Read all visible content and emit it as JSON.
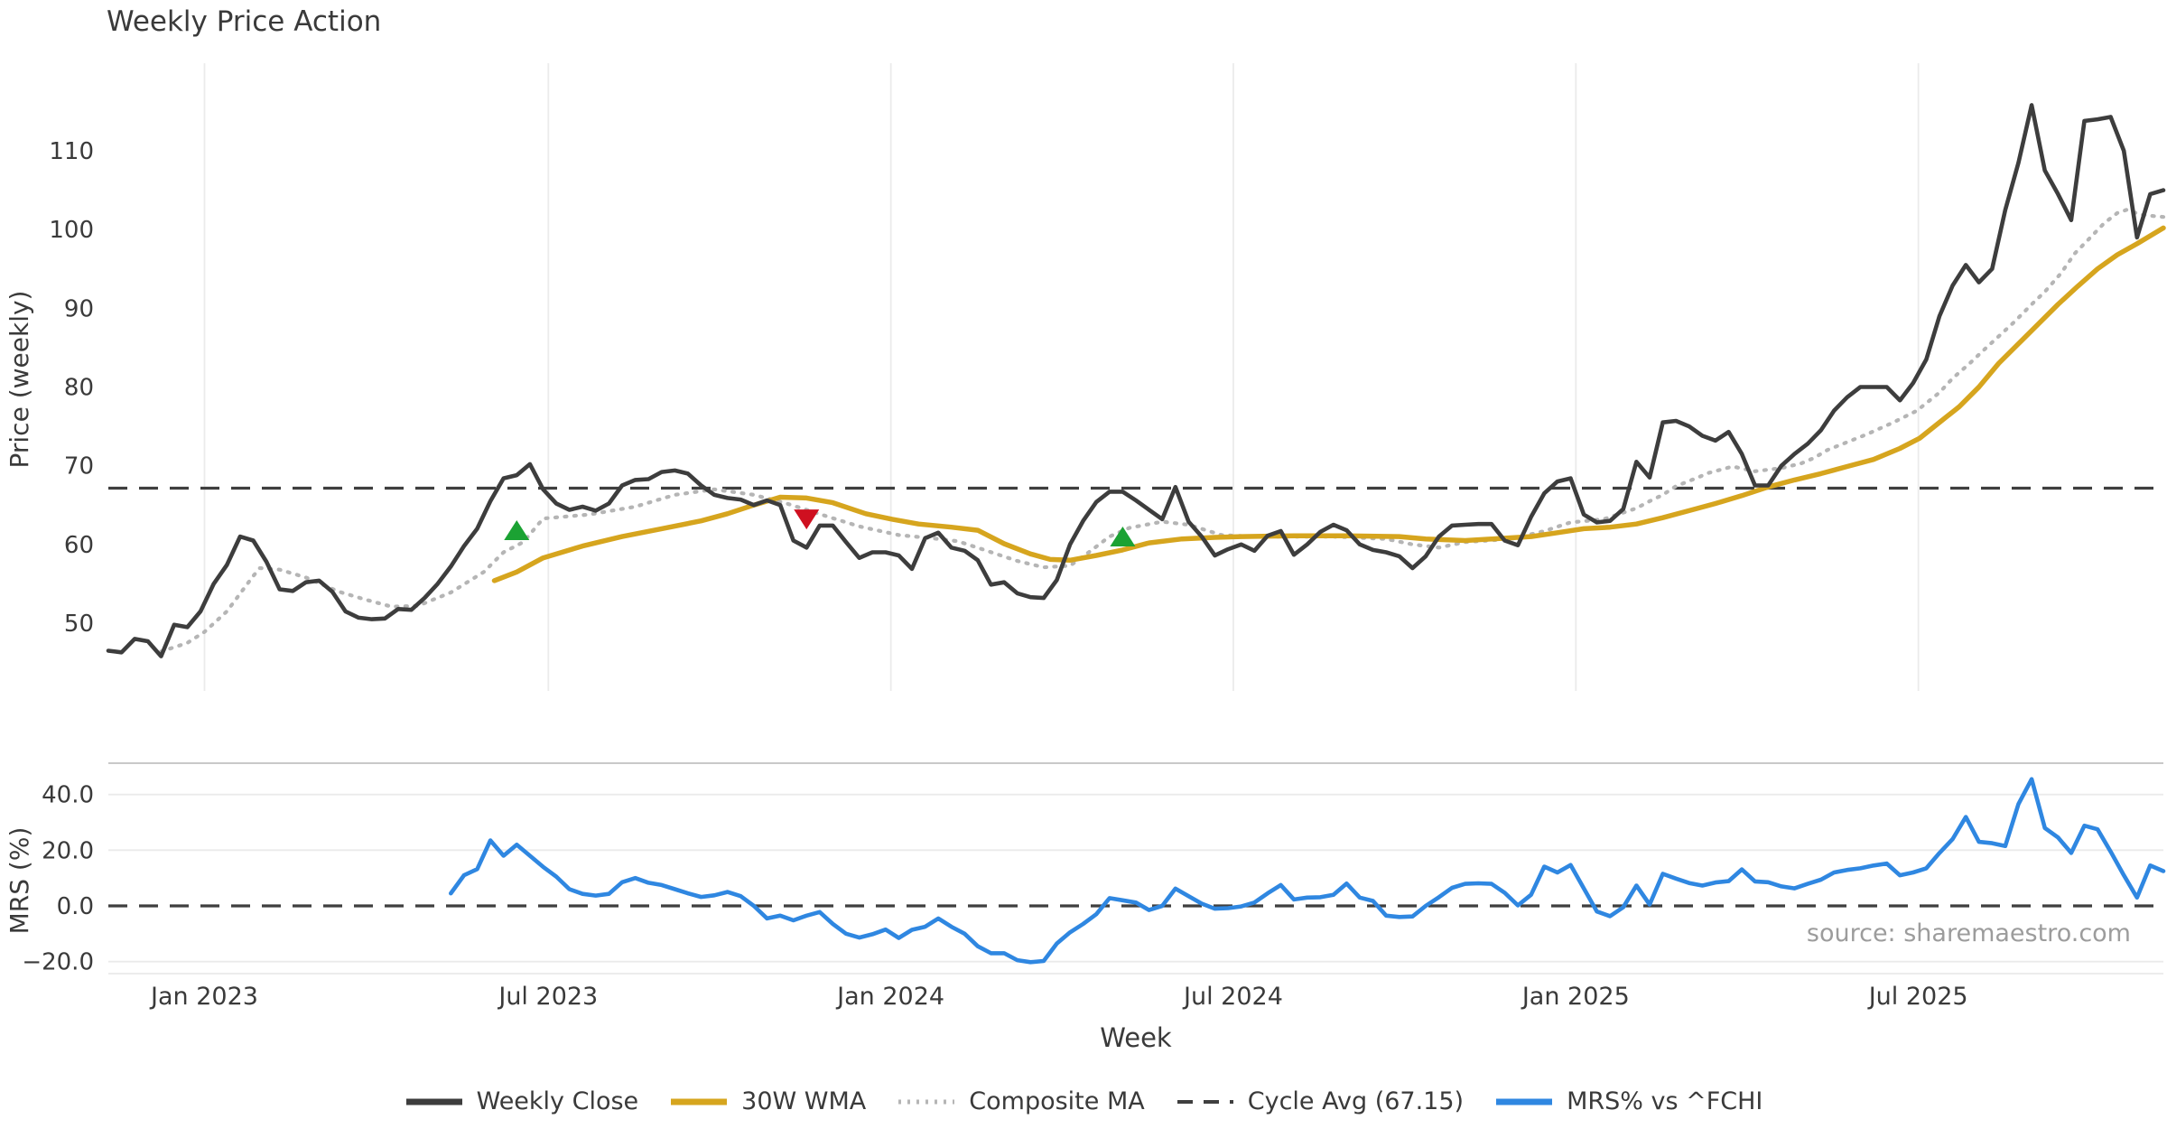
{
  "title": "Weekly Price Action",
  "source_text": "source: sharemaestro.com",
  "colors": {
    "weekly_close": "#3d3d3d",
    "wma_30w": "#d6a51e",
    "composite_ma": "#b5b5b5",
    "cycle_avg": "#3f3f3f",
    "mrs": "#2f87e1",
    "buy_marker": "#1ba233",
    "sell_marker": "#cf1020",
    "gridline": "#ebebeb",
    "panel_spine": "#c9c9c9",
    "text": "#3a3a3a"
  },
  "legend": [
    {
      "label": "Weekly Close",
      "style": "solid",
      "color": "#3d3d3d"
    },
    {
      "label": "30W WMA",
      "style": "solid",
      "color": "#d6a51e"
    },
    {
      "label": "Composite MA",
      "style": "dotted",
      "color": "#b5b5b5"
    },
    {
      "label": "Cycle Avg (67.15)",
      "style": "dashed",
      "color": "#3f3f3f"
    },
    {
      "label": "MRS% vs ^FCHI",
      "style": "solid",
      "color": "#2f87e1"
    }
  ],
  "chart_data": {
    "type": "line",
    "x_axis": {
      "label": "Week",
      "total_weeks": 156,
      "ticks": [
        {
          "week": 7.3,
          "label": "Jan 2023"
        },
        {
          "week": 33.4,
          "label": "Jul 2023"
        },
        {
          "week": 59.4,
          "label": "Jan 2024"
        },
        {
          "week": 85.4,
          "label": "Jul 2024"
        },
        {
          "week": 111.4,
          "label": "Jan 2025"
        },
        {
          "week": 137.4,
          "label": "Jul 2025"
        }
      ]
    },
    "price_panel": {
      "ylabel": "Price (weekly)",
      "ylim": [
        41,
        121
      ],
      "yticks": [
        50,
        60,
        70,
        80,
        90,
        100,
        110
      ],
      "cycle_avg": 67.15,
      "series": {
        "weekly_close": {
          "start_week": 0,
          "values": [
            46.5,
            46.3,
            48.0,
            47.7,
            45.8,
            49.8,
            49.5,
            51.5,
            55.0,
            57.4,
            61.0,
            60.5,
            57.8,
            54.3,
            54.1,
            55.2,
            55.4,
            54.0,
            51.5,
            50.7,
            50.5,
            50.6,
            51.8,
            51.7,
            53.2,
            55.0,
            57.2,
            59.8,
            62.0,
            65.5,
            68.4,
            68.8,
            70.2,
            67.0,
            65.2,
            64.4,
            64.8,
            64.3,
            65.2,
            67.5,
            68.2,
            68.3,
            69.2,
            69.4,
            69.0,
            67.5,
            66.3,
            65.9,
            65.7,
            65.0,
            65.6,
            65.0,
            60.5,
            59.6,
            62.4,
            62.4,
            60.3,
            58.3,
            59.0,
            59.0,
            58.6,
            56.9,
            60.8,
            61.5,
            59.6,
            59.2,
            58.0,
            54.9,
            55.2,
            53.8,
            53.3,
            53.2,
            55.5,
            60.0,
            63.0,
            65.4,
            66.7,
            66.7,
            65.6,
            64.4,
            63.2,
            67.3,
            62.9,
            61.0,
            58.6,
            59.4,
            60.0,
            59.2,
            61.1,
            61.7,
            58.7,
            60.0,
            61.6,
            62.5,
            61.8,
            60.0,
            59.3,
            59.0,
            58.5,
            57.0,
            58.5,
            61.0,
            62.4,
            62.5,
            62.6,
            62.6,
            60.5,
            59.9,
            63.5,
            66.5,
            68.0,
            68.4,
            63.8,
            62.8,
            63.0,
            64.5,
            70.5,
            68.5,
            75.5,
            75.7,
            75.0,
            73.8,
            73.2,
            74.3,
            71.5,
            67.5,
            67.5,
            70.0,
            71.5,
            72.8,
            74.5,
            77.0,
            78.7,
            80.0,
            80.0,
            80.0,
            78.3,
            80.5,
            83.5,
            89.0,
            92.9,
            95.5,
            93.3,
            95.0,
            102.5,
            108.5,
            115.8,
            107.5,
            104.5,
            101.2,
            113.8,
            114.0,
            114.3,
            110.0,
            99.0,
            104.5,
            105.0
          ]
        },
        "wma_30w": {
          "points": [
            [
              29.3,
              55.4
            ],
            [
              31,
              56.5
            ],
            [
              33,
              58.3
            ],
            [
              36,
              59.8
            ],
            [
              39,
              61.0
            ],
            [
              42,
              62.0
            ],
            [
              45,
              63.0
            ],
            [
              47,
              63.9
            ],
            [
              49,
              65.0
            ],
            [
              51,
              66.0
            ],
            [
              53,
              65.9
            ],
            [
              55,
              65.3
            ],
            [
              57.5,
              63.9
            ],
            [
              59.5,
              63.2
            ],
            [
              61.5,
              62.6
            ],
            [
              64,
              62.2
            ],
            [
              66,
              61.8
            ],
            [
              68,
              60.1
            ],
            [
              70,
              58.8
            ],
            [
              71.5,
              58.1
            ],
            [
              73,
              58.0
            ],
            [
              75,
              58.6
            ],
            [
              77,
              59.3
            ],
            [
              79,
              60.2
            ],
            [
              81.5,
              60.7
            ],
            [
              84,
              60.9
            ],
            [
              86,
              61.0
            ],
            [
              90,
              61.1
            ],
            [
              94,
              61.1
            ],
            [
              98,
              61.0
            ],
            [
              100,
              60.7
            ],
            [
              103,
              60.5
            ],
            [
              106,
              60.8
            ],
            [
              108,
              61.0
            ],
            [
              110,
              61.5
            ],
            [
              112,
              62.0
            ],
            [
              114,
              62.2
            ],
            [
              116,
              62.6
            ],
            [
              118,
              63.4
            ],
            [
              120,
              64.3
            ],
            [
              122,
              65.2
            ],
            [
              124,
              66.2
            ],
            [
              126,
              67.3
            ],
            [
              128,
              68.2
            ],
            [
              130,
              69.0
            ],
            [
              132,
              69.9
            ],
            [
              134,
              70.8
            ],
            [
              136,
              72.2
            ],
            [
              137.5,
              73.5
            ],
            [
              139,
              75.5
            ],
            [
              140.5,
              77.5
            ],
            [
              142,
              80.0
            ],
            [
              143.5,
              83.0
            ],
            [
              145,
              85.5
            ],
            [
              146.5,
              88.0
            ],
            [
              148,
              90.5
            ],
            [
              149.5,
              92.8
            ],
            [
              151,
              95.0
            ],
            [
              152.5,
              96.8
            ],
            [
              154,
              98.2
            ],
            [
              155,
              99.2
            ],
            [
              156,
              100.2
            ]
          ]
        },
        "composite_ma": {
          "points": [
            [
              4,
              46.4
            ],
            [
              6,
              47.5
            ],
            [
              7.3,
              48.9
            ],
            [
              9,
              51.5
            ],
            [
              11,
              56.0
            ],
            [
              11.5,
              57.0
            ],
            [
              13,
              56.8
            ],
            [
              15,
              55.8
            ],
            [
              17.5,
              54.0
            ],
            [
              19.5,
              53.0
            ],
            [
              21.5,
              52.1
            ],
            [
              23.5,
              52.2
            ],
            [
              26,
              53.9
            ],
            [
              28.5,
              56.5
            ],
            [
              30,
              59.0
            ],
            [
              31.5,
              60.3
            ],
            [
              33,
              63.3
            ],
            [
              36.5,
              63.8
            ],
            [
              40,
              64.8
            ],
            [
              43,
              66.3
            ],
            [
              46,
              67.0
            ],
            [
              49,
              66.3
            ],
            [
              51.5,
              65.2
            ],
            [
              54.5,
              63.6
            ],
            [
              57,
              62.3
            ],
            [
              60,
              61.2
            ],
            [
              62.5,
              60.8
            ],
            [
              64.5,
              60.4
            ],
            [
              66.5,
              59.3
            ],
            [
              69,
              57.9
            ],
            [
              71,
              57.1
            ],
            [
              73,
              57.3
            ],
            [
              74.5,
              59.1
            ],
            [
              76,
              61.0
            ],
            [
              77.5,
              62.1
            ],
            [
              80,
              62.9
            ],
            [
              82,
              62.5
            ],
            [
              84.5,
              61.2
            ],
            [
              87,
              61.0
            ],
            [
              93,
              61.0
            ],
            [
              97,
              60.7
            ],
            [
              99,
              60.0
            ],
            [
              101,
              59.6
            ],
            [
              103,
              60.3
            ],
            [
              106.5,
              60.7
            ],
            [
              109,
              61.7
            ],
            [
              111,
              62.8
            ],
            [
              113.5,
              63.2
            ],
            [
              116,
              64.6
            ],
            [
              117,
              65.5
            ],
            [
              118,
              66.3
            ],
            [
              119,
              67.4
            ],
            [
              120.5,
              68.4
            ],
            [
              121.5,
              69.1
            ],
            [
              123.3,
              69.9
            ],
            [
              125,
              69.3
            ],
            [
              127,
              69.7
            ],
            [
              128.5,
              70.3
            ],
            [
              129.5,
              71.0
            ],
            [
              130.5,
              72.0
            ],
            [
              132,
              73.0
            ],
            [
              133.5,
              74.0
            ],
            [
              135.5,
              75.5
            ],
            [
              137.3,
              77.0
            ],
            [
              139,
              79.3
            ],
            [
              140,
              81.1
            ],
            [
              141.3,
              83.0
            ],
            [
              142.5,
              84.9
            ],
            [
              143.6,
              86.6
            ],
            [
              144.7,
              88.3
            ],
            [
              146,
              90.5
            ],
            [
              147,
              92.1
            ],
            [
              148.2,
              94.4
            ],
            [
              149.3,
              97.0
            ],
            [
              150.4,
              98.9
            ],
            [
              151.5,
              100.8
            ],
            [
              152.5,
              102.1
            ],
            [
              153.2,
              102.5
            ],
            [
              154.3,
              101.9
            ],
            [
              155.3,
              101.7
            ],
            [
              156,
              101.6
            ]
          ]
        }
      },
      "signal_markers": [
        {
          "type": "buy",
          "shape": "triangle-up",
          "week": 31,
          "value": 61.7
        },
        {
          "type": "sell",
          "shape": "triangle-down",
          "week": 53,
          "value": 63.3
        },
        {
          "type": "buy",
          "shape": "triangle-up",
          "week": 77,
          "value": 60.9
        }
      ]
    },
    "mrs_panel": {
      "ylabel": "MRS (%)",
      "ylim": [
        -33,
        51
      ],
      "yticks": [
        {
          "v": -20,
          "label": "−20.0"
        },
        {
          "v": 0,
          "label": "0.0"
        },
        {
          "v": 20,
          "label": "20.0"
        },
        {
          "v": 40,
          "label": "40.0"
        }
      ],
      "zero_line": 0,
      "series": {
        "mrs_pct": {
          "start_week": 26,
          "values": [
            4.5,
            11.0,
            13.2,
            23.5,
            18.0,
            22.0,
            18.0,
            14.0,
            10.5,
            6.0,
            4.3,
            3.7,
            4.3,
            8.5,
            10.0,
            8.3,
            7.5,
            6.0,
            4.5,
            3.2,
            3.8,
            5.0,
            3.5,
            0.0,
            -4.5,
            -3.5,
            -5.2,
            -3.5,
            -2.2,
            -6.5,
            -10.0,
            -11.4,
            -10.2,
            -8.5,
            -11.5,
            -8.6,
            -7.5,
            -4.5,
            -7.5,
            -10.0,
            -14.5,
            -17.0,
            -17.0,
            -19.5,
            -20.2,
            -19.8,
            -13.5,
            -9.5,
            -6.5,
            -3.0,
            2.8,
            2.0,
            1.2,
            -1.5,
            0.0,
            6.2,
            3.5,
            0.8,
            -1.0,
            -0.8,
            -0.2,
            1.2,
            4.5,
            7.5,
            2.3,
            3.0,
            3.1,
            4.0,
            8.0,
            3.0,
            1.8,
            -3.5,
            -4.0,
            -3.8,
            0.0,
            3.1,
            6.5,
            7.9,
            8.1,
            7.9,
            4.7,
            0.2,
            4.0,
            14.1,
            12.0,
            14.7,
            6.3,
            -2.0,
            -3.7,
            -0.5,
            7.3,
            0.5,
            11.5,
            9.8,
            8.2,
            7.3,
            8.4,
            8.9,
            13.1,
            8.8,
            8.5,
            7.0,
            6.3,
            7.9,
            9.4,
            12.0,
            12.9,
            13.5,
            14.5,
            15.2,
            11.0,
            12.0,
            13.5,
            19.0,
            24.0,
            31.9,
            23.0,
            22.5,
            21.5,
            36.6,
            45.5,
            28.0,
            24.6,
            19.0,
            28.8,
            27.5,
            19.5,
            11.0,
            3.0,
            14.5,
            12.5
          ]
        }
      }
    }
  }
}
